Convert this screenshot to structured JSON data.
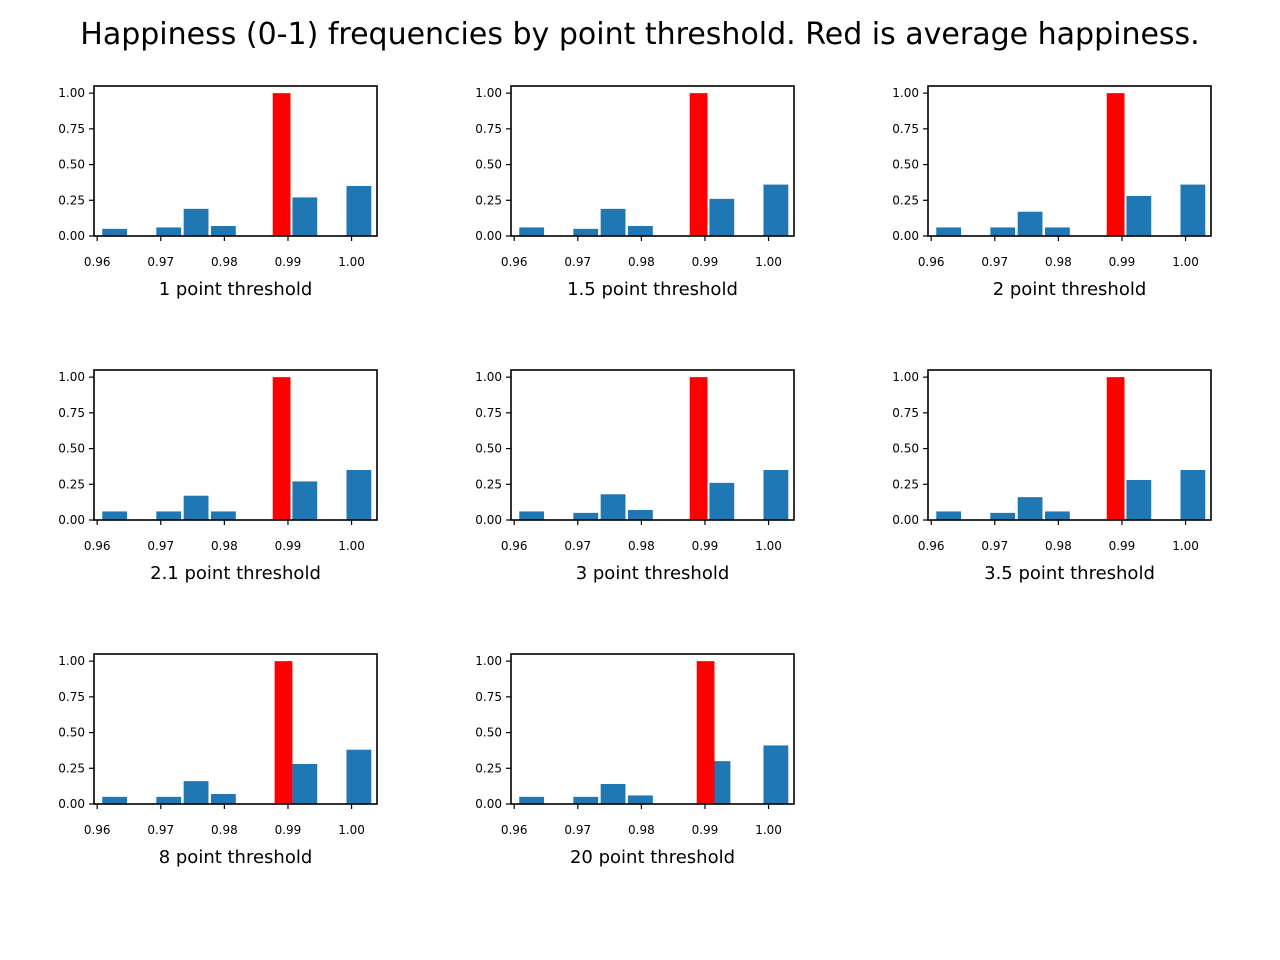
{
  "title": "Happiness (0-1) frequencies by point threshold. Red is average happiness.",
  "colors": {
    "bars": "#1f77b4",
    "average": "#ff0000"
  },
  "chart_data": [
    {
      "type": "bar",
      "xlabel": "1 point threshold",
      "xlim": [
        0.9595,
        1.004
      ],
      "ylim": [
        0,
        1.05
      ],
      "xticks": [
        "0.96",
        "0.97",
        "0.98",
        "0.99",
        "1.00"
      ],
      "yticks": [
        "0.00",
        "0.25",
        "0.50",
        "0.75",
        "1.00"
      ],
      "bins": [
        {
          "x0": 0.9608,
          "x1": 0.9647,
          "value": 0.05
        },
        {
          "x0": 0.9693,
          "x1": 0.9732,
          "value": 0.06
        },
        {
          "x0": 0.9736,
          "x1": 0.9775,
          "value": 0.19
        },
        {
          "x0": 0.9779,
          "x1": 0.9818,
          "value": 0.07
        },
        {
          "x0": 0.9907,
          "x1": 0.9946,
          "value": 0.27
        },
        {
          "x0": 0.9992,
          "x1": 1.0031,
          "value": 0.35
        }
      ],
      "average": {
        "x0": 0.9876,
        "x1": 0.9904,
        "value": 1.0
      }
    },
    {
      "type": "bar",
      "xlabel": "1.5 point threshold",
      "xlim": [
        0.9595,
        1.004
      ],
      "ylim": [
        0,
        1.05
      ],
      "xticks": [
        "0.96",
        "0.97",
        "0.98",
        "0.99",
        "1.00"
      ],
      "yticks": [
        "0.00",
        "0.25",
        "0.50",
        "0.75",
        "1.00"
      ],
      "bins": [
        {
          "x0": 0.9608,
          "x1": 0.9647,
          "value": 0.06
        },
        {
          "x0": 0.9693,
          "x1": 0.9732,
          "value": 0.05
        },
        {
          "x0": 0.9736,
          "x1": 0.9775,
          "value": 0.19
        },
        {
          "x0": 0.9779,
          "x1": 0.9818,
          "value": 0.07
        },
        {
          "x0": 0.9907,
          "x1": 0.9946,
          "value": 0.26
        },
        {
          "x0": 0.9992,
          "x1": 1.0031,
          "value": 0.36
        }
      ],
      "average": {
        "x0": 0.9876,
        "x1": 0.9904,
        "value": 1.0
      }
    },
    {
      "type": "bar",
      "xlabel": "2 point threshold",
      "xlim": [
        0.9595,
        1.004
      ],
      "ylim": [
        0,
        1.05
      ],
      "xticks": [
        "0.96",
        "0.97",
        "0.98",
        "0.99",
        "1.00"
      ],
      "yticks": [
        "0.00",
        "0.25",
        "0.50",
        "0.75",
        "1.00"
      ],
      "bins": [
        {
          "x0": 0.9608,
          "x1": 0.9647,
          "value": 0.06
        },
        {
          "x0": 0.9693,
          "x1": 0.9732,
          "value": 0.06
        },
        {
          "x0": 0.9736,
          "x1": 0.9775,
          "value": 0.17
        },
        {
          "x0": 0.9779,
          "x1": 0.9818,
          "value": 0.06
        },
        {
          "x0": 0.9907,
          "x1": 0.9946,
          "value": 0.28
        },
        {
          "x0": 0.9992,
          "x1": 1.0031,
          "value": 0.36
        }
      ],
      "average": {
        "x0": 0.9876,
        "x1": 0.9904,
        "value": 1.0
      }
    },
    {
      "type": "bar",
      "xlabel": "2.1 point threshold",
      "xlim": [
        0.9595,
        1.004
      ],
      "ylim": [
        0,
        1.05
      ],
      "xticks": [
        "0.96",
        "0.97",
        "0.98",
        "0.99",
        "1.00"
      ],
      "yticks": [
        "0.00",
        "0.25",
        "0.50",
        "0.75",
        "1.00"
      ],
      "bins": [
        {
          "x0": 0.9608,
          "x1": 0.9647,
          "value": 0.06
        },
        {
          "x0": 0.9693,
          "x1": 0.9732,
          "value": 0.06
        },
        {
          "x0": 0.9736,
          "x1": 0.9775,
          "value": 0.17
        },
        {
          "x0": 0.9779,
          "x1": 0.9818,
          "value": 0.06
        },
        {
          "x0": 0.9907,
          "x1": 0.9946,
          "value": 0.27
        },
        {
          "x0": 0.9992,
          "x1": 1.0031,
          "value": 0.35
        }
      ],
      "average": {
        "x0": 0.9876,
        "x1": 0.9904,
        "value": 1.0
      }
    },
    {
      "type": "bar",
      "xlabel": "3 point threshold",
      "xlim": [
        0.9595,
        1.004
      ],
      "ylim": [
        0,
        1.05
      ],
      "xticks": [
        "0.96",
        "0.97",
        "0.98",
        "0.99",
        "1.00"
      ],
      "yticks": [
        "0.00",
        "0.25",
        "0.50",
        "0.75",
        "1.00"
      ],
      "bins": [
        {
          "x0": 0.9608,
          "x1": 0.9647,
          "value": 0.06
        },
        {
          "x0": 0.9693,
          "x1": 0.9732,
          "value": 0.05
        },
        {
          "x0": 0.9736,
          "x1": 0.9775,
          "value": 0.18
        },
        {
          "x0": 0.9779,
          "x1": 0.9818,
          "value": 0.07
        },
        {
          "x0": 0.9907,
          "x1": 0.9946,
          "value": 0.26
        },
        {
          "x0": 0.9992,
          "x1": 1.0031,
          "value": 0.35
        }
      ],
      "average": {
        "x0": 0.9876,
        "x1": 0.9904,
        "value": 1.0
      }
    },
    {
      "type": "bar",
      "xlabel": "3.5 point threshold",
      "xlim": [
        0.9595,
        1.004
      ],
      "ylim": [
        0,
        1.05
      ],
      "xticks": [
        "0.96",
        "0.97",
        "0.98",
        "0.99",
        "1.00"
      ],
      "yticks": [
        "0.00",
        "0.25",
        "0.50",
        "0.75",
        "1.00"
      ],
      "bins": [
        {
          "x0": 0.9608,
          "x1": 0.9647,
          "value": 0.06
        },
        {
          "x0": 0.9693,
          "x1": 0.9732,
          "value": 0.05
        },
        {
          "x0": 0.9736,
          "x1": 0.9775,
          "value": 0.16
        },
        {
          "x0": 0.9779,
          "x1": 0.9818,
          "value": 0.06
        },
        {
          "x0": 0.9907,
          "x1": 0.9946,
          "value": 0.28
        },
        {
          "x0": 0.9992,
          "x1": 1.0031,
          "value": 0.35
        }
      ],
      "average": {
        "x0": 0.9876,
        "x1": 0.9904,
        "value": 1.0
      }
    },
    {
      "type": "bar",
      "xlabel": "8 point threshold",
      "xlim": [
        0.9595,
        1.004
      ],
      "ylim": [
        0,
        1.05
      ],
      "xticks": [
        "0.96",
        "0.97",
        "0.98",
        "0.99",
        "1.00"
      ],
      "yticks": [
        "0.00",
        "0.25",
        "0.50",
        "0.75",
        "1.00"
      ],
      "bins": [
        {
          "x0": 0.9608,
          "x1": 0.9647,
          "value": 0.05
        },
        {
          "x0": 0.9693,
          "x1": 0.9732,
          "value": 0.05
        },
        {
          "x0": 0.9736,
          "x1": 0.9775,
          "value": 0.16
        },
        {
          "x0": 0.9779,
          "x1": 0.9818,
          "value": 0.07
        },
        {
          "x0": 0.9907,
          "x1": 0.9946,
          "value": 0.28
        },
        {
          "x0": 0.9992,
          "x1": 1.0031,
          "value": 0.38
        }
      ],
      "average": {
        "x0": 0.9879,
        "x1": 0.9907,
        "value": 1.0
      }
    },
    {
      "type": "bar",
      "xlabel": "20 point threshold",
      "xlim": [
        0.9595,
        1.004
      ],
      "ylim": [
        0,
        1.05
      ],
      "xticks": [
        "0.96",
        "0.97",
        "0.98",
        "0.99",
        "1.00"
      ],
      "yticks": [
        "0.00",
        "0.25",
        "0.50",
        "0.75",
        "1.00"
      ],
      "bins": [
        {
          "x0": 0.9608,
          "x1": 0.9647,
          "value": 0.05
        },
        {
          "x0": 0.9693,
          "x1": 0.9732,
          "value": 0.05
        },
        {
          "x0": 0.9736,
          "x1": 0.9775,
          "value": 0.14
        },
        {
          "x0": 0.9779,
          "x1": 0.9818,
          "value": 0.06
        },
        {
          "x0": 0.9915,
          "x1": 0.994,
          "value": 0.3
        },
        {
          "x0": 0.9992,
          "x1": 1.0031,
          "value": 0.41
        }
      ],
      "average": {
        "x0": 0.9887,
        "x1": 0.9915,
        "value": 1.0
      }
    }
  ]
}
